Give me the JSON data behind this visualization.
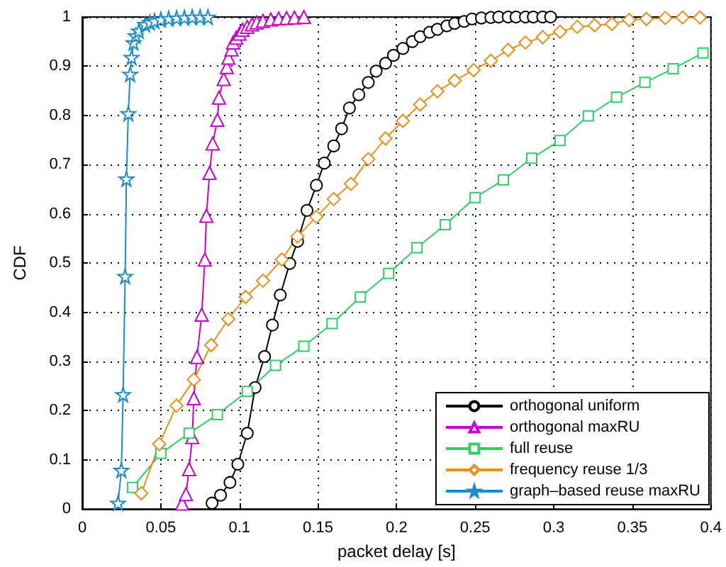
{
  "chart_data": {
    "type": "line",
    "xlabel": "packet delay [s]",
    "ylabel": "CDF",
    "xlim": [
      0,
      0.4
    ],
    "xticks": [
      0,
      0.05,
      0.1,
      0.15,
      0.2,
      0.25,
      0.3,
      0.35,
      0.4
    ],
    "ylim": [
      0,
      1
    ],
    "yticks": [
      0,
      0.1,
      0.2,
      0.3,
      0.4,
      0.5,
      0.6,
      0.7,
      0.8,
      0.9,
      1
    ],
    "grid": true,
    "legend": "bottom right",
    "line_style": "solid",
    "series": [
      {
        "name": "orthogonal uniform",
        "color": "#000000",
        "marker": "circle",
        "x": [
          0.0826,
          0.088,
          0.094,
          0.099,
          0.105,
          0.11,
          0.116,
          0.121,
          0.126,
          0.132,
          0.137,
          0.143,
          0.149,
          0.154,
          0.16,
          0.165,
          0.17,
          0.176,
          0.182,
          0.187,
          0.193,
          0.198,
          0.204,
          0.21,
          0.215,
          0.221,
          0.226,
          0.232,
          0.237,
          0.243,
          0.248,
          0.254,
          0.26,
          0.265,
          0.271,
          0.276,
          0.282,
          0.287,
          0.293,
          0.298
        ],
        "values": [
          0.012,
          0.028,
          0.054,
          0.091,
          0.154,
          0.247,
          0.31,
          0.374,
          0.435,
          0.499,
          0.544,
          0.607,
          0.658,
          0.703,
          0.738,
          0.773,
          0.815,
          0.842,
          0.867,
          0.89,
          0.906,
          0.922,
          0.936,
          0.95,
          0.96,
          0.969,
          0.975,
          0.982,
          0.987,
          0.991,
          0.996,
          0.998,
          0.999,
          1,
          1,
          1,
          1,
          1,
          1,
          1
        ]
      },
      {
        "name": "orthogonal maxRU",
        "color": "#cc00cc",
        "marker": "triangle",
        "x": [
          0.0636,
          0.066,
          0.068,
          0.07,
          0.071,
          0.073,
          0.076,
          0.078,
          0.079,
          0.081,
          0.083,
          0.086,
          0.087,
          0.09,
          0.092,
          0.093,
          0.095,
          0.096,
          0.098,
          0.1,
          0.102,
          0.105,
          0.108,
          0.111,
          0.115,
          0.12,
          0.125,
          0.13,
          0.135,
          0.141
        ],
        "values": [
          0.011,
          0.03,
          0.081,
          0.146,
          0.225,
          0.309,
          0.395,
          0.507,
          0.596,
          0.683,
          0.743,
          0.791,
          0.836,
          0.874,
          0.898,
          0.917,
          0.934,
          0.948,
          0.958,
          0.966,
          0.974,
          0.98,
          0.985,
          0.989,
          0.992,
          0.995,
          0.997,
          0.998,
          0.999,
          1
        ]
      },
      {
        "name": "full reuse",
        "color": "#33cc66",
        "marker": "square",
        "x": [
          0.032,
          0.05,
          0.068,
          0.086,
          0.105,
          0.123,
          0.141,
          0.159,
          0.177,
          0.195,
          0.213,
          0.231,
          0.25,
          0.268,
          0.286,
          0.304,
          0.322,
          0.34,
          0.358,
          0.376,
          0.395
        ],
        "values": [
          0.044,
          0.113,
          0.154,
          0.192,
          0.239,
          0.292,
          0.331,
          0.377,
          0.431,
          0.479,
          0.531,
          0.578,
          0.633,
          0.669,
          0.713,
          0.749,
          0.799,
          0.837,
          0.867,
          0.895,
          0.927
        ]
      },
      {
        "name": "frequency reuse 1/3",
        "color": "#e8901a",
        "marker": "diamond",
        "x": [
          0.0376,
          0.049,
          0.06,
          0.071,
          0.082,
          0.093,
          0.104,
          0.115,
          0.127,
          0.137,
          0.149,
          0.16,
          0.171,
          0.182,
          0.193,
          0.204,
          0.215,
          0.226,
          0.237,
          0.249,
          0.26,
          0.271,
          0.282,
          0.293,
          0.304,
          0.315,
          0.326,
          0.337,
          0.348,
          0.359,
          0.371,
          0.382,
          0.393
        ],
        "values": [
          0.032,
          0.132,
          0.21,
          0.263,
          0.333,
          0.386,
          0.431,
          0.464,
          0.507,
          0.554,
          0.594,
          0.63,
          0.661,
          0.711,
          0.753,
          0.789,
          0.822,
          0.849,
          0.871,
          0.892,
          0.911,
          0.933,
          0.948,
          0.959,
          0.97,
          0.98,
          0.983,
          0.986,
          0.994,
          0.996,
          0.998,
          0.999,
          0.999
        ]
      },
      {
        "name": "graph–based reuse maxRU",
        "color": "#1a8ccc",
        "marker": "star",
        "x": [
          0.0228,
          0.0249,
          0.026,
          0.0273,
          0.0281,
          0.0293,
          0.0305,
          0.0314,
          0.0326,
          0.034,
          0.036,
          0.04,
          0.043,
          0.046,
          0.05,
          0.055,
          0.06,
          0.065,
          0.07,
          0.075,
          0.08
        ],
        "values": [
          0.012,
          0.079,
          0.233,
          0.473,
          0.671,
          0.804,
          0.884,
          0.918,
          0.948,
          0.962,
          0.972,
          0.985,
          0.989,
          0.992,
          0.995,
          0.997,
          0.998,
          0.999,
          1,
          1,
          1
        ]
      }
    ]
  }
}
